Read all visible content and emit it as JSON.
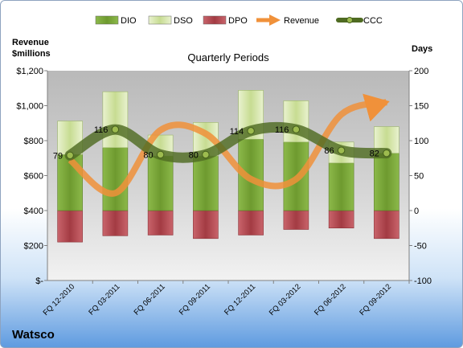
{
  "chart_data": {
    "type": "bar",
    "title": "Quarterly Periods",
    "company": "Watsco",
    "left_axis_label": [
      "Revenue",
      "$millions"
    ],
    "right_axis_label": "Days",
    "left_axis": {
      "min": 0,
      "max": 1200,
      "step": 200,
      "tick_labels": [
        "$-",
        "$200",
        "$400",
        "$600",
        "$800",
        "$1,000",
        "$1,200"
      ]
    },
    "right_axis": {
      "min": -100,
      "max": 200,
      "step": 50,
      "tick_labels": [
        "-100",
        "-50",
        "0",
        "50",
        "100",
        "150",
        "200"
      ]
    },
    "categories": [
      "FQ 12-2010",
      "FQ 03-2011",
      "FQ 06-2011",
      "FQ 09-2011",
      "FQ 12-2011",
      "FQ 03-2012",
      "FQ 06-2012",
      "FQ 09-2012"
    ],
    "legend": {
      "placement": "top",
      "entries": [
        "DIO",
        "DSO",
        "DPO",
        "Revenue",
        "CCC"
      ]
    },
    "series": [
      {
        "name": "DIO",
        "axis": "right",
        "color": "#7aa33a",
        "values": [
          80,
          90,
          78,
          78,
          102,
          98,
          68,
          82
        ]
      },
      {
        "name": "DSO",
        "axis": "right",
        "color": "#d8e8b0",
        "values": [
          48,
          80,
          30,
          48,
          70,
          59,
          30,
          38
        ]
      },
      {
        "name": "DPO",
        "axis": "right",
        "color": "#b8474e",
        "values": [
          -45,
          -36,
          -35,
          -40,
          -35,
          -27,
          -25,
          -40
        ]
      },
      {
        "name": "Revenue",
        "axis": "left",
        "color": "#f0913a",
        "values": [
          690,
          500,
          860,
          840,
          580,
          580,
          950,
          1020
        ]
      },
      {
        "name": "CCC",
        "axis": "right",
        "color": "#5e7a2e",
        "values": [
          79,
          116,
          80,
          80,
          114,
          116,
          86,
          82
        ]
      }
    ],
    "ccc_labels": [
      "79",
      "116",
      "80",
      "80",
      "114",
      "116",
      "86",
      "82"
    ],
    "grid": false
  }
}
